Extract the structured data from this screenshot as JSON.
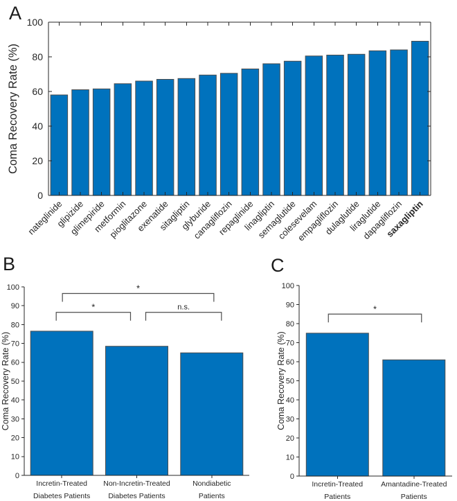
{
  "panels": {
    "a_label": "A",
    "b_label": "B",
    "c_label": "C"
  },
  "colors": {
    "bar": "#0072BD",
    "bar_edge": "#4d4d4d",
    "axis": "#262626",
    "text": "#262626",
    "bracket": "#4d4d4d",
    "background": "#ffffff"
  },
  "chart_data": [
    {
      "panel": "A",
      "type": "bar",
      "title": "",
      "xlabel": "",
      "ylabel": "Coma Recovery Rate (%)",
      "ylim": [
        0,
        100
      ],
      "yticks": [
        0,
        20,
        40,
        60,
        80,
        100
      ],
      "grid": false,
      "box": true,
      "tick_rotation_deg": 45,
      "categories": [
        "nateglinide",
        "glipizide",
        "glimepiride",
        "metformin",
        "pioglitazone",
        "exenatide",
        "sitagliptin",
        "glyburide",
        "canagliflozin",
        "repaglinide",
        "linagliptin",
        "semaglutide",
        "colesevelam",
        "empagliflozin",
        "dulaglutide",
        "liraglutide",
        "dapagliflozin",
        "saxagliptin"
      ],
      "values": [
        58,
        61,
        61.5,
        64.5,
        66,
        67,
        67.5,
        69.5,
        70.5,
        73,
        76,
        77.5,
        80.5,
        81,
        81.5,
        83.5,
        84,
        89
      ],
      "emphasized_category": "saxagliptin"
    },
    {
      "panel": "B",
      "type": "bar",
      "title": "",
      "xlabel": "",
      "ylabel": "Coma Recovery Rate (%)",
      "ylim": [
        0,
        100
      ],
      "yticks": [
        0,
        10,
        20,
        30,
        40,
        50,
        60,
        70,
        80,
        90,
        100
      ],
      "grid": false,
      "box": false,
      "categories": [
        [
          "Incretin-Treated",
          "Diabetes Patients"
        ],
        [
          "Non-Incretin-Treated",
          "Diabetes Patients"
        ],
        [
          "Nondiabetic",
          "Patients"
        ]
      ],
      "values": [
        76.5,
        68.5,
        65
      ],
      "significance": [
        {
          "pair": [
            0,
            1
          ],
          "label": "*",
          "y": 86.5,
          "x_offsets": [
            -8,
            -9
          ]
        },
        {
          "pair": [
            1,
            2
          ],
          "label": "n.s.",
          "y": 86.5,
          "x_offsets": [
            13,
            14
          ]
        },
        {
          "pair": [
            0,
            2
          ],
          "label": "*",
          "y": 96.5,
          "x_offsets": [
            1,
            3
          ]
        }
      ]
    },
    {
      "panel": "C",
      "type": "bar",
      "title": "",
      "xlabel": "",
      "ylabel": "Coma Recovery Rate (%)",
      "ylim": [
        0,
        100
      ],
      "yticks": [
        0,
        10,
        20,
        30,
        40,
        50,
        60,
        70,
        80,
        90,
        100
      ],
      "grid": false,
      "box": false,
      "categories": [
        [
          "Incretin-Treated",
          "Patients"
        ],
        [
          "Amantadine-Treated",
          "Patients"
        ]
      ],
      "values": [
        75,
        61
      ],
      "significance": [
        {
          "pair": [
            0,
            1
          ],
          "label": "*",
          "y": 85,
          "x_offsets": [
            -13,
            11
          ]
        }
      ]
    }
  ]
}
